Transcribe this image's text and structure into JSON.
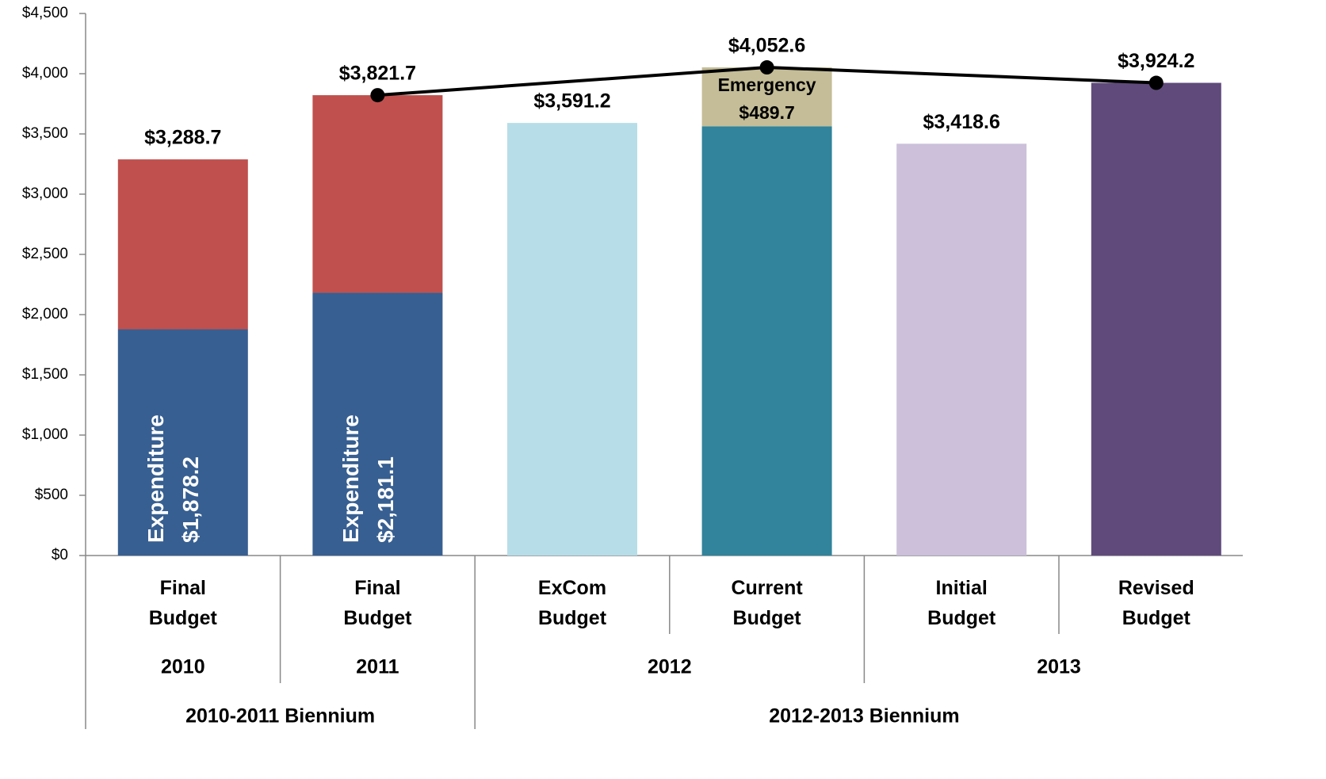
{
  "chart_data": {
    "type": "bar",
    "stacked": true,
    "categories": [
      "Final Budget",
      "Final Budget",
      "ExCom Budget",
      "Current Budget",
      "Initial Budget",
      "Revised Budget"
    ],
    "years": [
      "2010",
      "2011",
      "2012",
      "2013"
    ],
    "biennia": [
      "2010-2011 Biennium",
      "2012-2013 Biennium"
    ],
    "ylim": [
      0,
      4500
    ],
    "yticks": [
      {
        "value": 0,
        "label": "$0"
      },
      {
        "value": 500,
        "label": "$500"
      },
      {
        "value": 1000,
        "label": "$1,000"
      },
      {
        "value": 1500,
        "label": "$1,500"
      },
      {
        "value": 2000,
        "label": "$2,000"
      },
      {
        "value": 2500,
        "label": "$2,500"
      },
      {
        "value": 3000,
        "label": "$3,000"
      },
      {
        "value": 3500,
        "label": "$3,500"
      },
      {
        "value": 4000,
        "label": "$4,000"
      },
      {
        "value": 4500,
        "label": "$4,500"
      }
    ],
    "totals": [
      3288.7,
      3821.7,
      3591.2,
      4052.6,
      3418.6,
      3924.2
    ],
    "total_labels": [
      "$3,288.7",
      "$3,821.7",
      "$3,591.2",
      "$4,052.6",
      "$3,418.6",
      "$3,924.2"
    ],
    "series": [
      {
        "name": "Expenditure",
        "color": "#375f91",
        "values": [
          1878.2,
          2181.1,
          null,
          null,
          null,
          null
        ],
        "value_labels": [
          "$1,878.2",
          "$2,181.1",
          null,
          null,
          null,
          null
        ]
      },
      {
        "color": "#c0504d",
        "values": [
          1410.5,
          1640.6,
          null,
          null,
          null,
          null
        ]
      },
      {
        "color": "#b7dde8",
        "values": [
          null,
          null,
          3591.2,
          null,
          null,
          null
        ]
      },
      {
        "color": "#31849b",
        "values": [
          null,
          null,
          null,
          3562.9,
          null,
          null
        ]
      },
      {
        "name": "Emergency",
        "color": "#c4bd97",
        "values": [
          null,
          null,
          null,
          489.7,
          null,
          null
        ],
        "value_labels": [
          null,
          null,
          null,
          "$489.7",
          null,
          null
        ]
      },
      {
        "color": "#ccc0da",
        "values": [
          null,
          null,
          null,
          null,
          3418.6,
          null
        ]
      },
      {
        "color": "#604a7b",
        "values": [
          null,
          null,
          null,
          null,
          null,
          3924.2
        ]
      },
      {
        "type": "line",
        "color": "#000000",
        "values": [
          null,
          3821.7,
          null,
          4052.6,
          null,
          3924.2
        ]
      }
    ]
  }
}
